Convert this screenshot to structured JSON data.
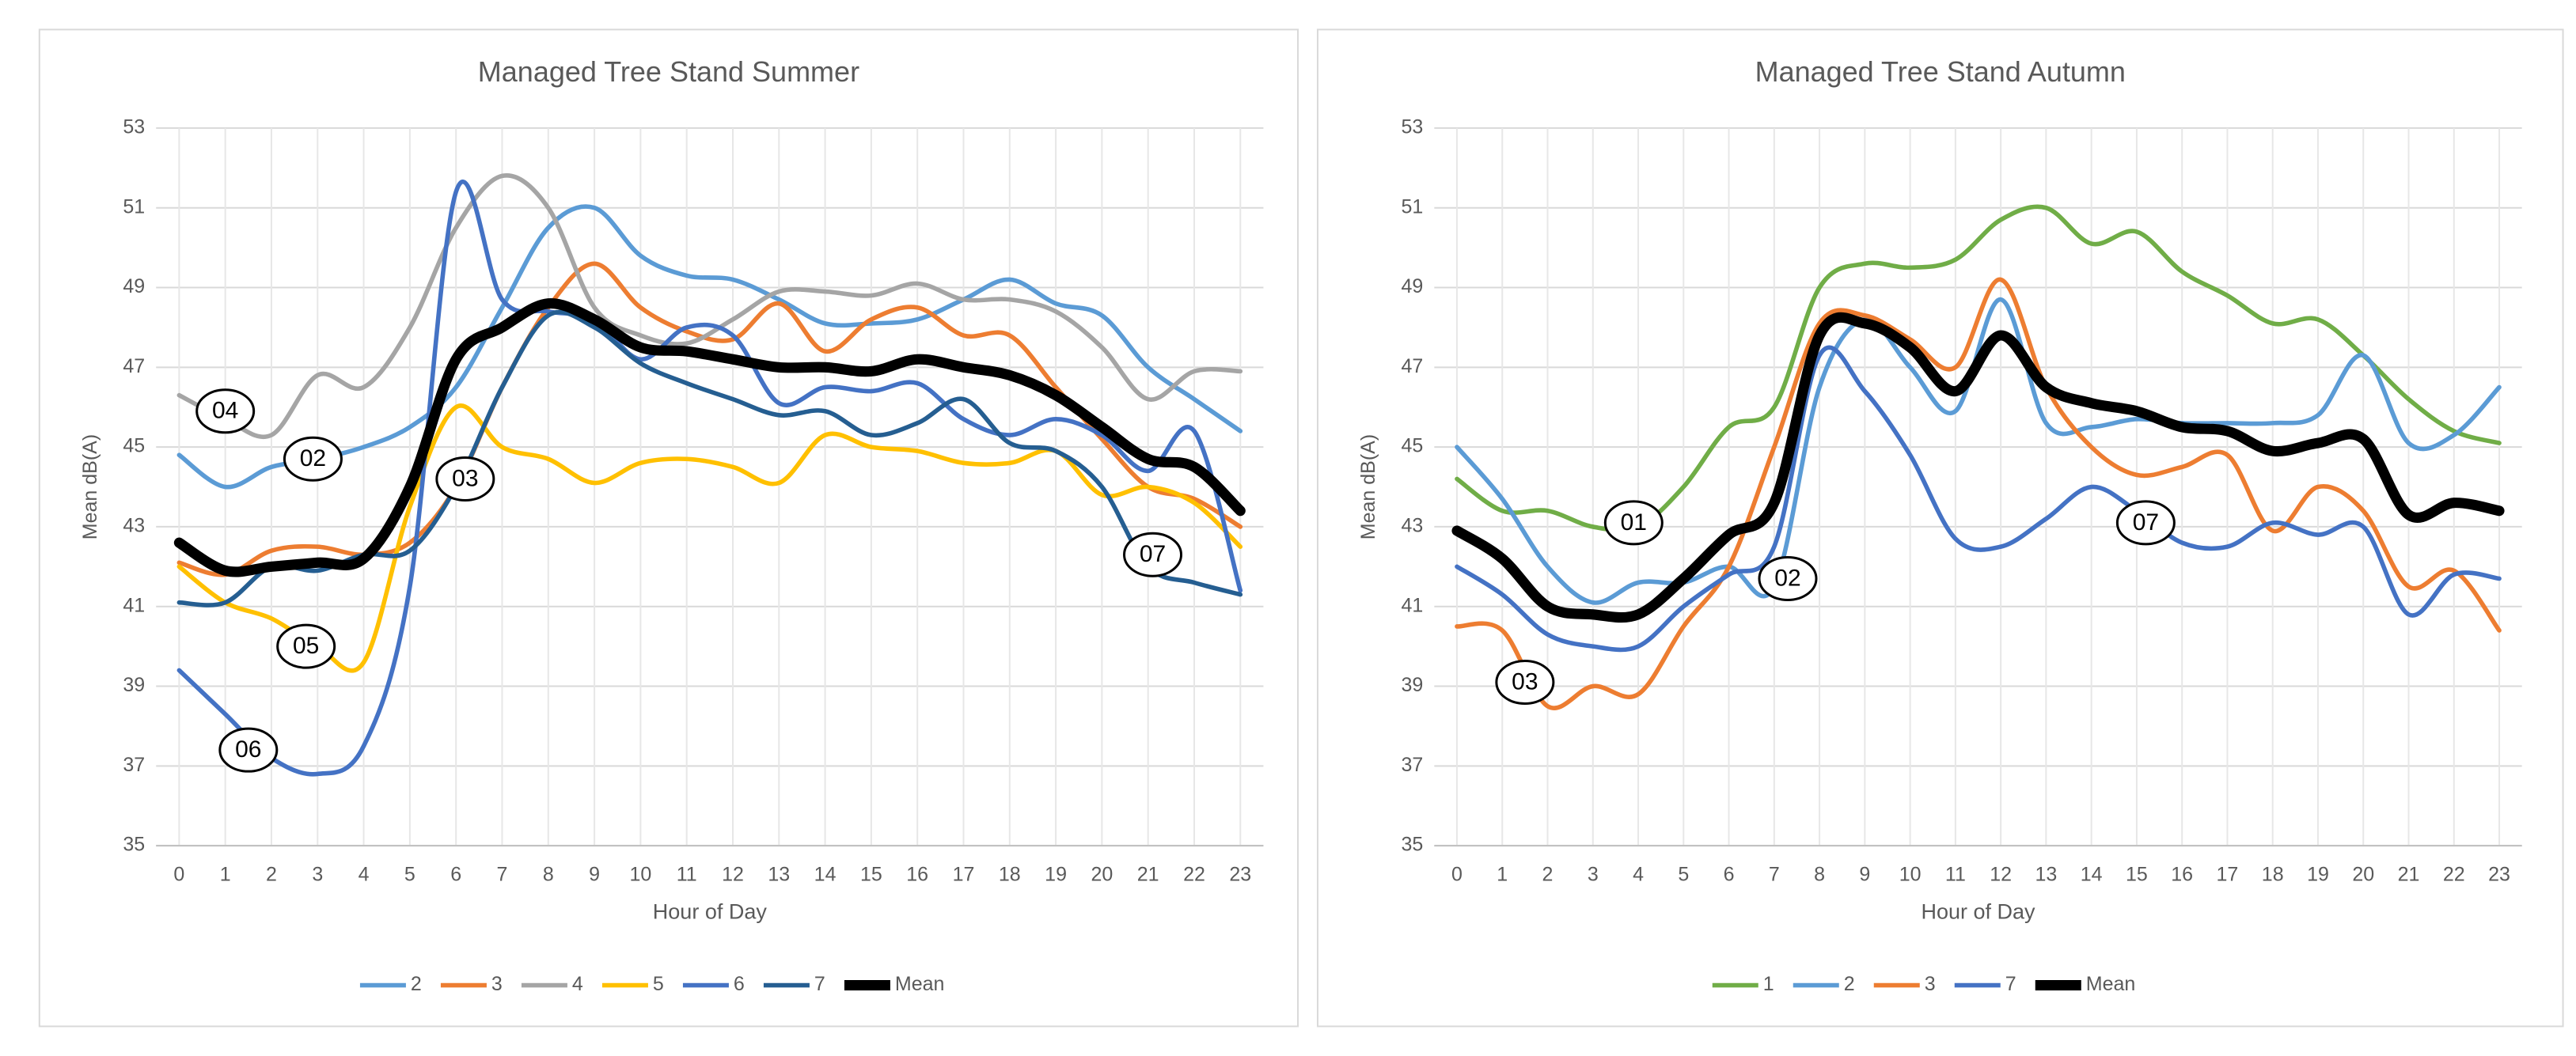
{
  "chart_data": [
    {
      "type": "line",
      "title": "Managed Tree Stand Summer",
      "xlabel": "Hour of Day",
      "ylabel": "Mean dB(A)",
      "x": [
        0,
        1,
        2,
        3,
        4,
        5,
        6,
        7,
        8,
        9,
        10,
        11,
        12,
        13,
        14,
        15,
        16,
        17,
        18,
        19,
        20,
        21,
        22,
        23
      ],
      "xlim": [
        -0.5,
        23.5
      ],
      "xticks": [
        0,
        1,
        2,
        3,
        4,
        5,
        6,
        7,
        8,
        9,
        10,
        11,
        12,
        13,
        14,
        15,
        16,
        17,
        18,
        19,
        20,
        21,
        22,
        23
      ],
      "ylim": [
        35,
        53
      ],
      "yticks": [
        35,
        37,
        39,
        41,
        43,
        45,
        47,
        49,
        51,
        53
      ],
      "grid": true,
      "legend": "bottom",
      "series": [
        {
          "name": "2",
          "color": "#5b9bd5",
          "width": 3,
          "values": [
            44.8,
            44.0,
            44.5,
            44.7,
            45.0,
            45.5,
            46.5,
            48.5,
            50.5,
            51.0,
            49.8,
            49.3,
            49.2,
            48.7,
            48.1,
            48.1,
            48.2,
            48.7,
            49.2,
            48.6,
            48.3,
            47.0,
            46.2,
            45.4
          ]
        },
        {
          "name": "3",
          "color": "#ed7d31",
          "width": 3,
          "values": [
            42.1,
            41.8,
            42.4,
            42.5,
            42.3,
            42.6,
            44.0,
            46.5,
            48.5,
            49.6,
            48.5,
            47.9,
            47.7,
            48.6,
            47.4,
            48.2,
            48.5,
            47.8,
            47.8,
            46.5,
            45.2,
            44.0,
            43.7,
            43.0
          ]
        },
        {
          "name": "4",
          "color": "#a5a5a5",
          "width": 3,
          "values": [
            46.3,
            45.7,
            45.3,
            46.8,
            46.5,
            48.0,
            50.5,
            51.8,
            51.0,
            48.5,
            47.8,
            47.6,
            48.2,
            48.9,
            48.9,
            48.8,
            49.1,
            48.7,
            48.7,
            48.4,
            47.5,
            46.2,
            46.9,
            46.9
          ]
        },
        {
          "name": "5",
          "color": "#ffc000",
          "width": 3,
          "values": [
            42.0,
            41.1,
            40.7,
            40.0,
            39.6,
            43.5,
            46.0,
            45.0,
            44.7,
            44.1,
            44.6,
            44.7,
            44.5,
            44.1,
            45.3,
            45.0,
            44.9,
            44.6,
            44.6,
            44.9,
            43.8,
            44.0,
            43.6,
            42.5
          ]
        },
        {
          "name": "6",
          "color": "#4472c4",
          "width": 3,
          "values": [
            39.4,
            38.3,
            37.2,
            36.8,
            37.5,
            41.5,
            51.4,
            48.7,
            48.4,
            48.2,
            47.2,
            48.0,
            47.8,
            46.1,
            46.5,
            46.4,
            46.6,
            45.7,
            45.3,
            45.7,
            45.3,
            44.4,
            45.4,
            41.4
          ]
        },
        {
          "name": "7",
          "color": "#255e91",
          "width": 3,
          "values": [
            41.1,
            41.1,
            42.0,
            41.9,
            42.3,
            42.4,
            44.0,
            46.5,
            48.3,
            48.0,
            47.1,
            46.6,
            46.2,
            45.8,
            45.9,
            45.3,
            45.6,
            46.2,
            45.1,
            44.9,
            44.0,
            42.0,
            41.6,
            41.3
          ]
        },
        {
          "name": "Mean",
          "color": "#000000",
          "width": 7,
          "values": [
            42.6,
            41.9,
            42.0,
            42.1,
            42.2,
            44.0,
            47.2,
            48.0,
            48.6,
            48.2,
            47.5,
            47.4,
            47.2,
            47.0,
            47.0,
            46.9,
            47.2,
            47.0,
            46.8,
            46.3,
            45.5,
            44.7,
            44.5,
            43.4
          ]
        }
      ],
      "annotations": [
        {
          "text": "04",
          "x": 1.0,
          "y": 45.9
        },
        {
          "text": "02",
          "x": 2.9,
          "y": 44.7
        },
        {
          "text": "03",
          "x": 6.2,
          "y": 44.2
        },
        {
          "text": "05",
          "x": 2.75,
          "y": 40.0
        },
        {
          "text": "06",
          "x": 1.5,
          "y": 37.4
        },
        {
          "text": "07",
          "x": 21.1,
          "y": 42.3
        }
      ]
    },
    {
      "type": "line",
      "title": "Managed Tree Stand Autumn",
      "xlabel": "Hour of Day",
      "ylabel": "Mean dB(A)",
      "x": [
        0,
        1,
        2,
        3,
        4,
        5,
        6,
        7,
        8,
        9,
        10,
        11,
        12,
        13,
        14,
        15,
        16,
        17,
        18,
        19,
        20,
        21,
        22,
        23
      ],
      "xlim": [
        -0.5,
        23.5
      ],
      "xticks": [
        0,
        1,
        2,
        3,
        4,
        5,
        6,
        7,
        8,
        9,
        10,
        11,
        12,
        13,
        14,
        15,
        16,
        17,
        18,
        19,
        20,
        21,
        22,
        23
      ],
      "ylim": [
        35,
        53
      ],
      "yticks": [
        35,
        37,
        39,
        41,
        43,
        45,
        47,
        49,
        51,
        53
      ],
      "grid": true,
      "legend": "bottom",
      "series": [
        {
          "name": "1",
          "color": "#70ad47",
          "width": 3,
          "values": [
            44.2,
            43.4,
            43.4,
            43.0,
            43.0,
            44.0,
            45.5,
            46.0,
            49.0,
            49.6,
            49.5,
            49.7,
            50.7,
            51.0,
            50.1,
            50.4,
            49.4,
            48.8,
            48.1,
            48.2,
            47.3,
            46.2,
            45.4,
            45.1
          ]
        },
        {
          "name": "2",
          "color": "#5b9bd5",
          "width": 3,
          "values": [
            45.0,
            43.7,
            42.0,
            41.1,
            41.6,
            41.6,
            42.0,
            41.5,
            46.5,
            48.2,
            47.0,
            45.9,
            48.7,
            45.6,
            45.5,
            45.7,
            45.6,
            45.6,
            45.6,
            45.8,
            47.3,
            45.1,
            45.3,
            46.5
          ]
        },
        {
          "name": "3",
          "color": "#ed7d31",
          "width": 3,
          "values": [
            40.5,
            40.4,
            38.5,
            39.0,
            38.8,
            40.5,
            42.0,
            45.0,
            48.1,
            48.3,
            47.7,
            47.0,
            49.2,
            46.5,
            45.0,
            44.3,
            44.5,
            44.8,
            42.9,
            44.0,
            43.4,
            41.5,
            41.9,
            40.4
          ]
        },
        {
          "name": "7",
          "color": "#4472c4",
          "width": 3,
          "values": [
            42.0,
            41.3,
            40.3,
            40.0,
            40.0,
            41.0,
            41.8,
            42.5,
            47.3,
            46.4,
            44.8,
            42.7,
            42.5,
            43.2,
            44.0,
            43.4,
            42.6,
            42.5,
            43.1,
            42.8,
            43.0,
            40.8,
            41.8,
            41.7
          ]
        },
        {
          "name": "Mean",
          "color": "#000000",
          "width": 7,
          "values": [
            42.9,
            42.2,
            41.0,
            40.8,
            40.8,
            41.7,
            42.8,
            43.6,
            47.8,
            48.1,
            47.5,
            46.4,
            47.8,
            46.5,
            46.1,
            45.9,
            45.5,
            45.4,
            44.9,
            45.1,
            45.2,
            43.3,
            43.6,
            43.4
          ]
        }
      ],
      "annotations": [
        {
          "text": "01",
          "x": 3.9,
          "y": 43.1
        },
        {
          "text": "02",
          "x": 7.3,
          "y": 41.7
        },
        {
          "text": "03",
          "x": 1.5,
          "y": 39.1
        },
        {
          "text": "07",
          "x": 15.2,
          "y": 43.1
        }
      ]
    }
  ]
}
